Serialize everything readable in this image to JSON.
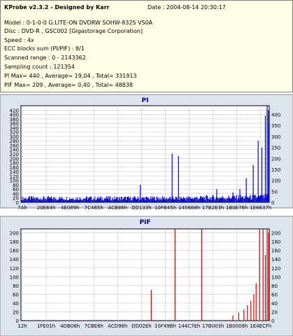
{
  "info": {
    "title": "KProbe v2.3.2 - Designed by Karr",
    "date": "Date : 2004-08-14 20:30:17",
    "lines": [
      "Model : 0-1-0-0 G:LITE-ON DVDRW SOHW-832S  VS0A",
      "Disc : DVD-R , GSC002 [Gigastorage Corporation]",
      "Speed : 4x",
      "ECC blocks sum (PI/PIF) : 8/1",
      "Scanned range : 0 - 2143362",
      "Sampling count : 121354",
      "PI Max= 440 , Average= 19,04 , Total= 331913",
      "PIF Max= 209 , Average= 0,40 , Total= 48838"
    ]
  },
  "colors": {
    "info_bg": "#ffffe6",
    "panel_bg": "#dde4ee",
    "plot_bg": "#ffffff",
    "grid": "#c8c8c8",
    "pi_series": "#0000cc",
    "pif_series": "#cc0000",
    "title_text": "#000080"
  },
  "chart_data": [
    {
      "type": "bar",
      "title": "PI",
      "xlabel": "",
      "ylabel": "",
      "ylim": [
        0,
        440
      ],
      "y_ticks": [
        "0",
        "20",
        "40",
        "60",
        "80",
        "100",
        "120",
        "140",
        "160",
        "180",
        "200",
        "220",
        "240",
        "260",
        "280",
        "300",
        "320",
        "340",
        "360",
        "380",
        "400",
        "420"
      ],
      "y_ticks_right": [
        "0",
        "50",
        "100",
        "150",
        "200",
        "250",
        "300",
        "350",
        "400"
      ],
      "x_tick_labels": [
        "7Ah",
        "20E64h",
        "4E089h",
        "7C465h",
        "ACB86h",
        "DD133h",
        "10FB45h",
        "145688h",
        "17B2E3h",
        "1B0E76h",
        "1E6637h"
      ],
      "x_range": [
        0,
        2143362
      ],
      "grid": true,
      "series": [
        {
          "baseline": 22,
          "spikes": [
            {
              "x": 1030000,
              "y": 80
            },
            {
              "x": 1305000,
              "y": 222
            },
            {
              "x": 1360000,
              "y": 212
            },
            {
              "x": 1690000,
              "y": 60
            },
            {
              "x": 1830000,
              "y": 45
            },
            {
              "x": 1890000,
              "y": 60
            },
            {
              "x": 1945000,
              "y": 110
            },
            {
              "x": 2005000,
              "y": 170
            },
            {
              "x": 2048000,
              "y": 280
            },
            {
              "x": 2080000,
              "y": 250
            },
            {
              "x": 2110000,
              "y": 395
            },
            {
              "x": 2125000,
              "y": 440
            },
            {
              "x": 2136000,
              "y": 420
            },
            {
              "x": 2141000,
              "y": 360
            }
          ]
        }
      ]
    },
    {
      "type": "bar",
      "title": "PIF",
      "xlabel": "",
      "ylabel": "",
      "ylim": [
        0,
        209
      ],
      "y_ticks": [
        "0",
        "20",
        "40",
        "60",
        "80",
        "100",
        "120",
        "140",
        "160",
        "180",
        "200"
      ],
      "y_ticks_right": [
        "0",
        "20",
        "40",
        "60",
        "80",
        "100",
        "120",
        "140",
        "160",
        "180",
        "200"
      ],
      "x_tick_labels": [
        "12h",
        "1FE01h",
        "4DB08h",
        "7CBE6h",
        "ACD96h",
        "DD02Eh",
        "10F49Bh",
        "144C7Eh",
        "17B003h",
        "1B0008h",
        "1E4ECFh"
      ],
      "x_range": [
        0,
        2143362
      ],
      "grid": true,
      "series": [
        {
          "baseline": 0,
          "spikes": [
            {
              "x": 1125000,
              "y": 70
            },
            {
              "x": 1330000,
              "y": 209
            },
            {
              "x": 1560000,
              "y": 209
            },
            {
              "x": 1830000,
              "y": 12
            },
            {
              "x": 1880000,
              "y": 18
            },
            {
              "x": 1925000,
              "y": 25
            },
            {
              "x": 1955000,
              "y": 35
            },
            {
              "x": 1985000,
              "y": 45
            },
            {
              "x": 2010000,
              "y": 60
            },
            {
              "x": 2030000,
              "y": 85
            },
            {
              "x": 2060000,
              "y": 209
            },
            {
              "x": 2090000,
              "y": 209
            },
            {
              "x": 2110000,
              "y": 150
            },
            {
              "x": 2125000,
              "y": 209
            },
            {
              "x": 2138000,
              "y": 200
            }
          ]
        }
      ]
    }
  ]
}
